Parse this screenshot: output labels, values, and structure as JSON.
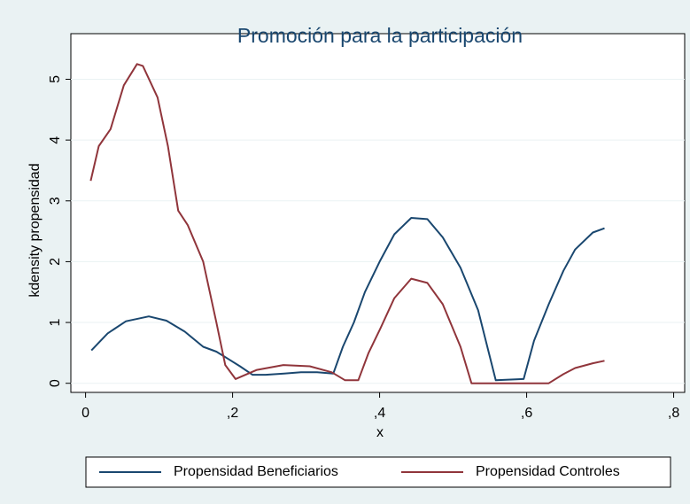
{
  "chart_data": {
    "type": "line",
    "title": "Promoción para la participación",
    "x_label": "x",
    "y_label": "kdensity propensidad",
    "xlim": [
      -0.02,
      0.815
    ],
    "ylim": [
      -0.15,
      5.75
    ],
    "xticks": [
      0,
      {
        "value": 0.2,
        "label": ",2"
      },
      {
        "value": 0.4,
        "label": ",4"
      },
      {
        "value": 0.6,
        "label": ",6"
      },
      {
        "value": 0.8,
        "label": ",8"
      }
    ],
    "yticks": [
      0,
      1,
      2,
      3,
      4,
      5
    ],
    "grid": true,
    "legend": "bottom",
    "series": [
      {
        "name": "Propensidad Beneficiarios",
        "color": "#1a476f",
        "x": [
          0.008,
          0.03,
          0.055,
          0.086,
          0.11,
          0.135,
          0.16,
          0.178,
          0.194,
          0.21,
          0.227,
          0.245,
          0.27,
          0.293,
          0.315,
          0.337,
          0.35,
          0.365,
          0.38,
          0.4,
          0.42,
          0.443,
          0.465,
          0.486,
          0.51,
          0.534,
          0.558,
          0.596,
          0.61,
          0.63,
          0.65,
          0.666,
          0.69,
          0.706
        ],
        "values": [
          0.54,
          0.82,
          1.02,
          1.1,
          1.03,
          0.85,
          0.6,
          0.52,
          0.4,
          0.28,
          0.14,
          0.14,
          0.16,
          0.18,
          0.18,
          0.16,
          0.6,
          1.0,
          1.5,
          2.0,
          2.45,
          2.72,
          2.7,
          2.4,
          1.9,
          1.2,
          0.05,
          0.07,
          0.7,
          1.3,
          1.85,
          2.2,
          2.48,
          2.55
        ]
      },
      {
        "name": "Propensidad Controles",
        "color": "#90353b",
        "x": [
          0.007,
          0.018,
          0.034,
          0.052,
          0.07,
          0.078,
          0.098,
          0.112,
          0.126,
          0.139,
          0.16,
          0.178,
          0.19,
          0.204,
          0.233,
          0.269,
          0.305,
          0.335,
          0.353,
          0.371,
          0.385,
          0.401,
          0.42,
          0.443,
          0.465,
          0.486,
          0.51,
          0.525,
          0.63,
          0.65,
          0.666,
          0.69,
          0.706
        ],
        "values": [
          3.33,
          3.9,
          4.18,
          4.9,
          5.25,
          5.22,
          4.7,
          3.9,
          2.84,
          2.6,
          2.0,
          1.0,
          0.3,
          0.07,
          0.22,
          0.3,
          0.28,
          0.18,
          0.05,
          0.05,
          0.5,
          0.9,
          1.4,
          1.72,
          1.65,
          1.3,
          0.6,
          0.0,
          0.0,
          0.15,
          0.25,
          0.33,
          0.37
        ]
      }
    ]
  }
}
